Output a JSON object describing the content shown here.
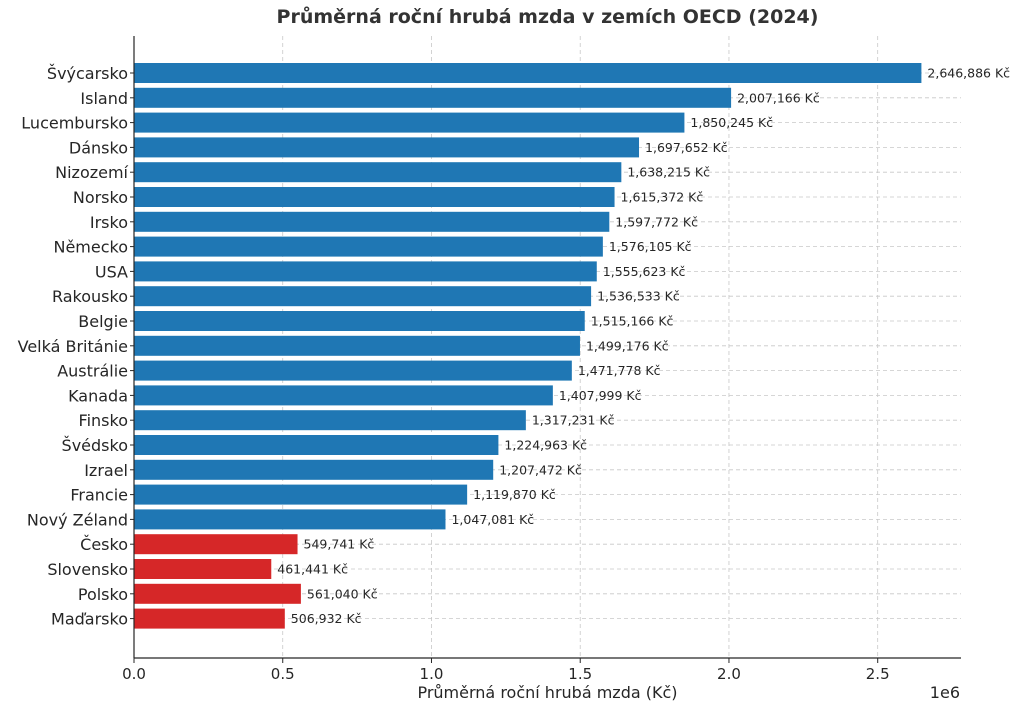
{
  "chart_data": {
    "type": "bar",
    "orientation": "horizontal",
    "title": "Průměrná roční hrubá mzda v zemích OECD (2024)",
    "xlabel": "Průměrná roční hrubá mzda (Kč)",
    "x_scale_note": "1e6",
    "xlim": [
      0,
      2780000
    ],
    "xticks": [
      0,
      500000,
      1000000,
      1500000,
      2000000,
      2500000
    ],
    "xtick_labels": [
      "0.0",
      "0.5",
      "1.0",
      "1.5",
      "2.0",
      "2.5"
    ],
    "grid": true,
    "colors": {
      "default": "#1f77b4",
      "highlight": "#d62728"
    },
    "categories": [
      "Švýcarsko",
      "Island",
      "Lucembursko",
      "Dánsko",
      "Nizozemí",
      "Norsko",
      "Irsko",
      "Německo",
      "USA",
      "Rakousko",
      "Belgie",
      "Velká Británie",
      "Austrálie",
      "Kanada",
      "Finsko",
      "Švédsko",
      "Izrael",
      "Francie",
      "Nový Zéland",
      "Česko",
      "Slovensko",
      "Polsko",
      "Maďarsko"
    ],
    "values": [
      2646886,
      2007166,
      1850245,
      1697652,
      1638215,
      1615372,
      1597772,
      1576105,
      1555623,
      1536533,
      1515166,
      1499176,
      1471778,
      1407999,
      1317231,
      1224963,
      1207472,
      1119870,
      1047081,
      549741,
      461441,
      561040,
      506932
    ],
    "value_labels": [
      "2,646,886 Kč",
      "2,007,166 Kč",
      "1,850,245 Kč",
      "1,697,652 Kč",
      "1,638,215 Kč",
      "1,615,372 Kč",
      "1,597,772 Kč",
      "1,576,105 Kč",
      "1,555,623 Kč",
      "1,536,533 Kč",
      "1,515,166 Kč",
      "1,499,176 Kč",
      "1,471,778 Kč",
      "1,407,999 Kč",
      "1,317,231 Kč",
      "1,224,963 Kč",
      "1,207,472 Kč",
      "1,119,870 Kč",
      "1,047,081 Kč",
      "549,741 Kč",
      "461,441 Kč",
      "561,040 Kč",
      "506,932 Kč"
    ],
    "highlighted": [
      "Česko",
      "Slovensko",
      "Polsko",
      "Maďarsko"
    ]
  }
}
